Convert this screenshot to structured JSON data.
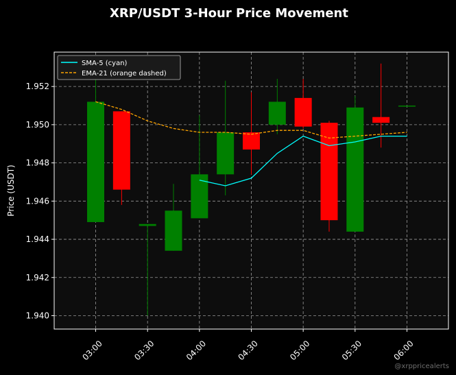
{
  "chart_data": {
    "type": "candlestick",
    "title": "XRP/USDT 3-Hour Price Movement",
    "xlabel": "",
    "ylabel": "Price (USDT)",
    "ylim": [
      1.9393,
      1.9538
    ],
    "xlim": [
      "02:36",
      "06:24"
    ],
    "grid": true,
    "legend_position": "top-left",
    "x_ticks": [
      "03:00",
      "03:30",
      "04:00",
      "04:30",
      "05:00",
      "05:30",
      "06:00"
    ],
    "y_ticks": [
      1.94,
      1.942,
      1.944,
      1.946,
      1.948,
      1.95,
      1.952
    ],
    "y_tick_labels": [
      "1.940",
      "1.942",
      "1.944",
      "1.946",
      "1.948",
      "1.950",
      "1.952"
    ],
    "candles": [
      {
        "t": "03:00",
        "open": 1.9449,
        "high": 1.9524,
        "low": 1.9449,
        "close": 1.9512
      },
      {
        "t": "03:15",
        "open": 1.9507,
        "high": 1.9507,
        "low": 1.9458,
        "close": 1.9466
      },
      {
        "t": "03:30",
        "open": 1.9447,
        "high": 1.9447,
        "low": 1.94,
        "close": 1.9448
      },
      {
        "t": "03:45",
        "open": 1.9434,
        "high": 1.9469,
        "low": 1.9434,
        "close": 1.9455
      },
      {
        "t": "04:00",
        "open": 1.9451,
        "high": 1.9505,
        "low": 1.9451,
        "close": 1.9474
      },
      {
        "t": "04:15",
        "open": 1.9474,
        "high": 1.9523,
        "low": 1.9463,
        "close": 1.9496
      },
      {
        "t": "04:30",
        "open": 1.9496,
        "high": 1.9517,
        "low": 1.9474,
        "close": 1.9487
      },
      {
        "t": "04:45",
        "open": 1.95,
        "high": 1.9524,
        "low": 1.9495,
        "close": 1.9512
      },
      {
        "t": "05:00",
        "open": 1.9514,
        "high": 1.9524,
        "low": 1.9498,
        "close": 1.9499
      },
      {
        "t": "05:15",
        "open": 1.9501,
        "high": 1.9502,
        "low": 1.9444,
        "close": 1.945
      },
      {
        "t": "05:30",
        "open": 1.9444,
        "high": 1.9515,
        "low": 1.9444,
        "close": 1.9509
      },
      {
        "t": "05:45",
        "open": 1.9504,
        "high": 1.9532,
        "low": 1.9488,
        "close": 1.9501
      },
      {
        "t": "06:00",
        "open": 1.951,
        "high": 1.951,
        "low": 1.951,
        "close": 1.951
      }
    ],
    "series": [
      {
        "name": "SMA-5 (cyan)",
        "color": "#00ffff",
        "style": "solid",
        "x": [
          "04:00",
          "04:15",
          "04:30",
          "04:45",
          "05:00",
          "05:15",
          "05:30",
          "05:45",
          "06:00"
        ],
        "values": [
          1.9471,
          1.9468,
          1.9472,
          1.9485,
          1.9494,
          1.9489,
          1.9491,
          1.9494,
          1.9494
        ]
      },
      {
        "name": "EMA-21 (orange dashed)",
        "color": "#ffa500",
        "style": "dashed",
        "x": [
          "03:00",
          "03:15",
          "03:30",
          "03:45",
          "04:00",
          "04:15",
          "04:30",
          "04:45",
          "05:00",
          "05:15",
          "05:30",
          "05:45",
          "06:00"
        ],
        "values": [
          1.9512,
          1.9508,
          1.9502,
          1.9498,
          1.9496,
          1.9496,
          1.9495,
          1.9497,
          1.9497,
          1.9493,
          1.9494,
          1.9495,
          1.9496
        ]
      }
    ],
    "colors": {
      "up": "#008000",
      "down": "#ff0000",
      "background": "#000000",
      "plot_background": "#0d0d0d",
      "grid": "#9a9a9a"
    },
    "watermark": "@xrppricealerts"
  }
}
